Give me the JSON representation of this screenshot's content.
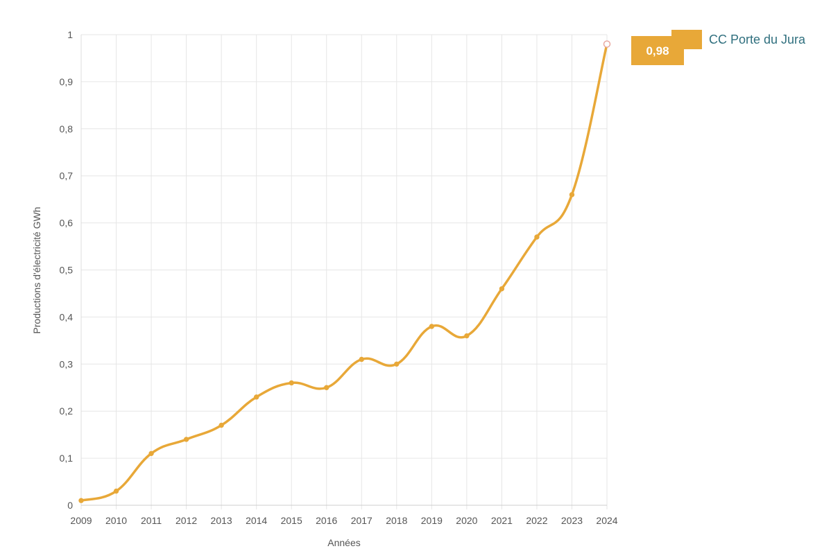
{
  "chart_data": {
    "type": "line",
    "x": [
      "2009",
      "2010",
      "2011",
      "2012",
      "2013",
      "2014",
      "2015",
      "2016",
      "2017",
      "2018",
      "2019",
      "2020",
      "2021",
      "2022",
      "2023",
      "2024"
    ],
    "series": [
      {
        "name": "CC Porte du Jura",
        "values": [
          0.01,
          0.03,
          0.11,
          0.14,
          0.17,
          0.23,
          0.26,
          0.25,
          0.31,
          0.3,
          0.38,
          0.36,
          0.46,
          0.57,
          0.66,
          0.98
        ],
        "color": "#e8a838"
      }
    ],
    "xlabel": "Années",
    "ylabel": "Productions d'électricité GWh",
    "ylim": [
      0,
      1
    ],
    "yticks": [
      "0",
      "0,1",
      "0,2",
      "0,3",
      "0,4",
      "0,5",
      "0,6",
      "0,7",
      "0,8",
      "0,9",
      "1"
    ],
    "grid": true,
    "legend_position": "top-right",
    "highlight": {
      "x": "2024",
      "label": "0,98"
    }
  }
}
